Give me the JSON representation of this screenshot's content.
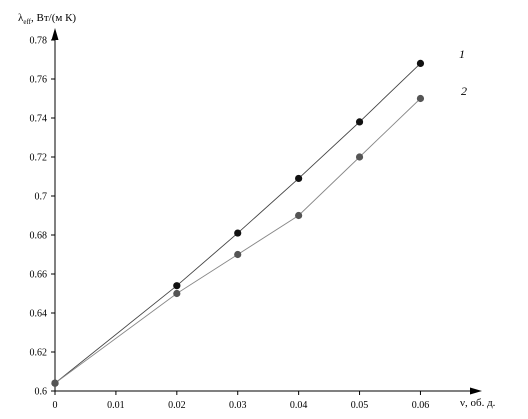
{
  "chart_data": {
    "type": "line",
    "ylabel_prefix": "λ",
    "ylabel_sub": "eff",
    "ylabel_suffix": ", Вт/(м К)",
    "xlabel": "ν, об. д.",
    "x": [
      0,
      0.02,
      0.03,
      0.04,
      0.05,
      0.06
    ],
    "xlim": [
      0,
      0.066
    ],
    "ylim": [
      0.6,
      0.78
    ],
    "x_ticks": [
      "0",
      "0.01",
      "0.02",
      "0.03",
      "0.04",
      "0.05",
      "0.06"
    ],
    "y_ticks": [
      "0.6",
      "0.62",
      "0.64",
      "0.66",
      "0.68",
      "0.7",
      "0.72",
      "0.74",
      "0.76",
      "0.78"
    ],
    "grid": false,
    "series": [
      {
        "name": "1",
        "values": [
          0.604,
          0.654,
          0.681,
          0.709,
          0.738,
          0.768
        ],
        "color": "#111111",
        "line_color": "#444444"
      },
      {
        "name": "2",
        "values": [
          0.604,
          0.65,
          0.67,
          0.69,
          0.72,
          0.75
        ],
        "color": "#555555",
        "line_color": "#888888"
      }
    ]
  }
}
